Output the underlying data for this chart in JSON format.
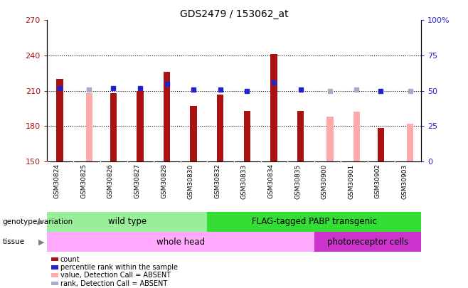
{
  "title": "GDS2479 / 153062_at",
  "samples": [
    "GSM30824",
    "GSM30825",
    "GSM30826",
    "GSM30827",
    "GSM30828",
    "GSM30830",
    "GSM30832",
    "GSM30833",
    "GSM30834",
    "GSM30835",
    "GSM30900",
    "GSM30901",
    "GSM30902",
    "GSM30903"
  ],
  "count_values": [
    220,
    null,
    208,
    210,
    226,
    197,
    207,
    193,
    241,
    193,
    null,
    null,
    178,
    null
  ],
  "count_absent_values": [
    null,
    208,
    null,
    null,
    null,
    null,
    null,
    null,
    null,
    null,
    188,
    192,
    null,
    182
  ],
  "rank_values": [
    52,
    null,
    52,
    52,
    55,
    51,
    51,
    50,
    56,
    51,
    null,
    null,
    50,
    null
  ],
  "rank_absent_values": [
    null,
    51,
    null,
    null,
    null,
    null,
    null,
    null,
    null,
    null,
    50,
    51,
    null,
    50
  ],
  "ylim_left": [
    150,
    270
  ],
  "ylim_right": [
    0,
    100
  ],
  "yticks_left": [
    150,
    180,
    210,
    240,
    270
  ],
  "yticks_right": [
    0,
    25,
    50,
    75,
    100
  ],
  "ytick_labels_left": [
    "150",
    "180",
    "210",
    "240",
    "270"
  ],
  "ytick_labels_right": [
    "0",
    "25",
    "50",
    "75",
    "100%"
  ],
  "color_count": "#aa1111",
  "color_rank": "#2222cc",
  "color_count_absent": "#ffaaaa",
  "color_rank_absent": "#aaaacc",
  "bar_width": 0.25,
  "absent_bar_width": 0.25,
  "genotype_wild": {
    "label": "wild type",
    "indices": [
      0,
      1,
      2,
      3,
      4,
      5
    ],
    "color": "#99ee99"
  },
  "genotype_flag": {
    "label": "FLAG-tagged PABP transgenic",
    "indices": [
      6,
      7,
      8,
      9,
      10,
      11,
      12,
      13
    ],
    "color": "#33dd33"
  },
  "tissue_whole": {
    "label": "whole head",
    "indices": [
      0,
      1,
      2,
      3,
      4,
      5,
      6,
      7,
      8,
      9
    ],
    "color": "#ffaaff"
  },
  "tissue_photo": {
    "label": "photoreceptor cells",
    "indices": [
      10,
      11,
      12,
      13
    ],
    "color": "#cc33cc"
  },
  "legend_items": [
    {
      "label": "count",
      "color": "#aa1111"
    },
    {
      "label": "percentile rank within the sample",
      "color": "#2222cc"
    },
    {
      "label": "value, Detection Call = ABSENT",
      "color": "#ffaaaa"
    },
    {
      "label": "rank, Detection Call = ABSENT",
      "color": "#aaaacc"
    }
  ]
}
